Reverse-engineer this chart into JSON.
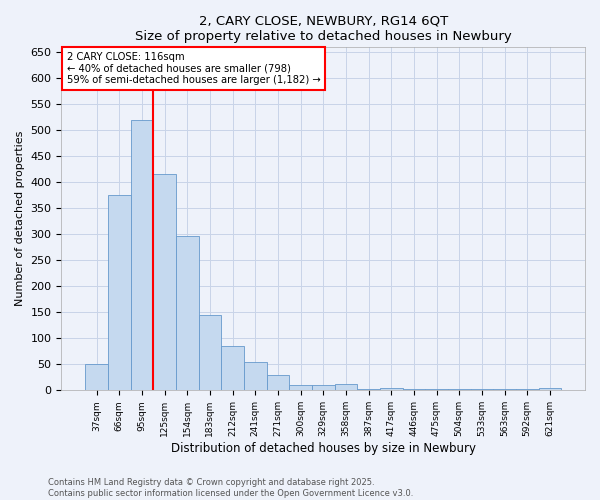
{
  "title1": "2, CARY CLOSE, NEWBURY, RG14 6QT",
  "title2": "Size of property relative to detached houses in Newbury",
  "xlabel": "Distribution of detached houses by size in Newbury",
  "ylabel": "Number of detached properties",
  "categories": [
    "37sqm",
    "66sqm",
    "95sqm",
    "125sqm",
    "154sqm",
    "183sqm",
    "212sqm",
    "241sqm",
    "271sqm",
    "300sqm",
    "329sqm",
    "358sqm",
    "387sqm",
    "417sqm",
    "446sqm",
    "475sqm",
    "504sqm",
    "533sqm",
    "563sqm",
    "592sqm",
    "621sqm"
  ],
  "values": [
    51,
    375,
    520,
    415,
    297,
    145,
    86,
    55,
    30,
    10,
    10,
    12,
    3,
    5,
    3,
    3,
    2,
    2,
    2,
    2,
    5
  ],
  "bar_color": "#c5d9ef",
  "bar_edge_color": "#6699cc",
  "vline_color": "red",
  "vline_x": 2.5,
  "annotation_text": "2 CARY CLOSE: 116sqm\n← 40% of detached houses are smaller (798)\n59% of semi-detached houses are larger (1,182) →",
  "annotation_box_color": "white",
  "annotation_box_edge": "red",
  "ylim": [
    0,
    660
  ],
  "yticks": [
    0,
    50,
    100,
    150,
    200,
    250,
    300,
    350,
    400,
    450,
    500,
    550,
    600,
    650
  ],
  "footer1": "Contains HM Land Registry data © Crown copyright and database right 2025.",
  "footer2": "Contains public sector information licensed under the Open Government Licence v3.0.",
  "bg_color": "#eef2fa",
  "grid_color": "#c8d4e8"
}
